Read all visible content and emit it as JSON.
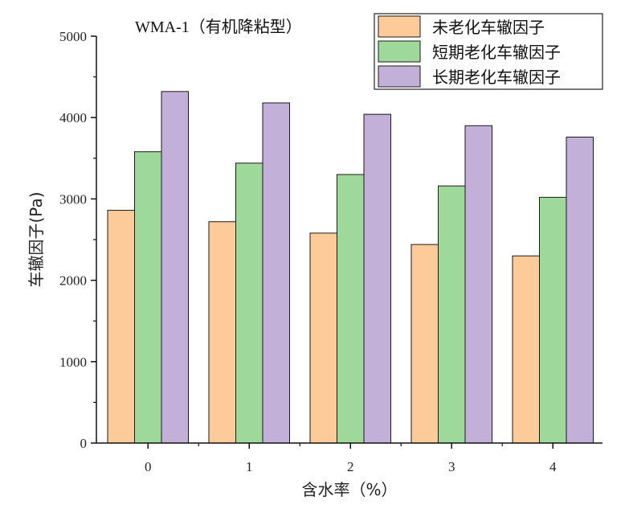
{
  "chart_data": {
    "type": "bar",
    "title": "WMA-1（有机降粘型）",
    "xlabel": "含水率（%）",
    "ylabel": "车辙因子(Pa)",
    "categories": [
      "0",
      "1",
      "2",
      "3",
      "4"
    ],
    "ylim": [
      0,
      5000
    ],
    "yticks": [
      0,
      1000,
      2000,
      3000,
      4000,
      5000
    ],
    "legend_position": "top-right",
    "grid": false,
    "series": [
      {
        "name": "未老化车辙因子",
        "color": "#FDCB99",
        "values": [
          2860,
          2720,
          2580,
          2440,
          2300
        ]
      },
      {
        "name": "短期老化车辙因子",
        "color": "#9ED89A",
        "values": [
          3580,
          3440,
          3300,
          3160,
          3020
        ]
      },
      {
        "name": "长期老化车辙因子",
        "color": "#C2B0D9",
        "values": [
          4320,
          4180,
          4040,
          3900,
          3760
        ]
      }
    ]
  }
}
